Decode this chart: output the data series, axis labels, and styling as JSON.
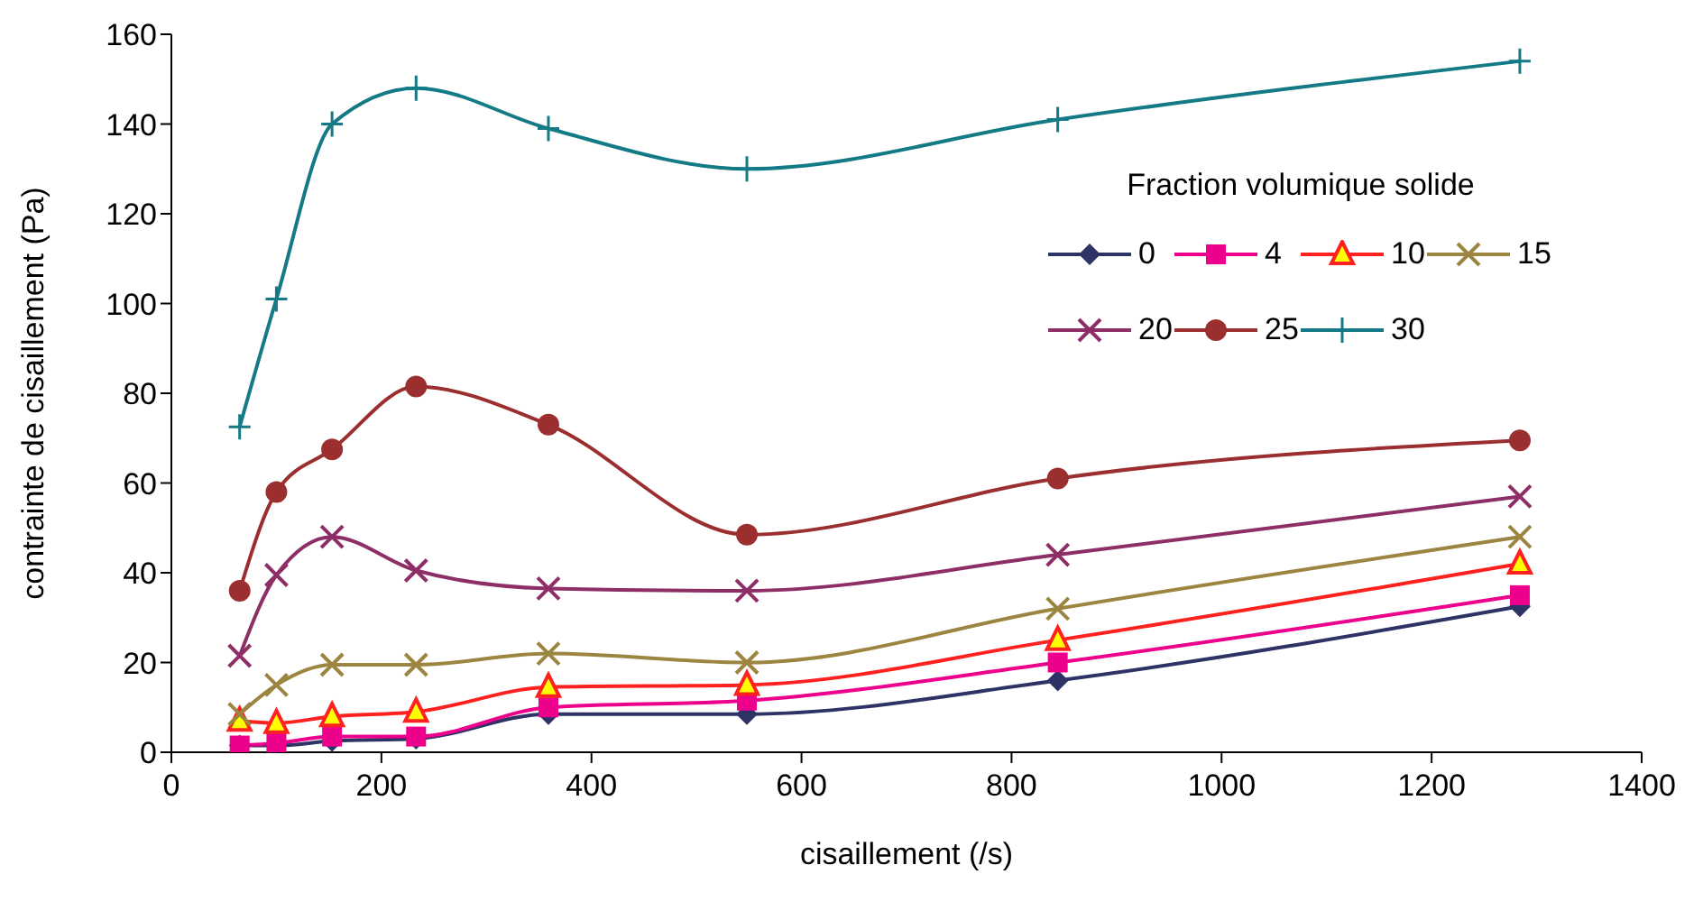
{
  "chart_data": {
    "type": "line",
    "xlabel": "cisaillement (/s)",
    "ylabel": "contrainte de cisaillement (Pa)",
    "legend_title": "Fraction volumique solide",
    "legend": "top right",
    "x": [
      65,
      100,
      153,
      233,
      359,
      548,
      844,
      1284
    ],
    "xlim": [
      0,
      1400
    ],
    "xticks": [
      0,
      200,
      400,
      600,
      800,
      1000,
      1200,
      1400
    ],
    "ylim": [
      0,
      160
    ],
    "yticks": [
      0,
      20,
      40,
      60,
      80,
      100,
      120,
      140,
      160
    ],
    "grid": false,
    "series": [
      {
        "name": "0",
        "color": "#2e3366",
        "marker": "diamond",
        "values": [
          1.5,
          1.5,
          2.5,
          3,
          8.5,
          8.5,
          16,
          32.5
        ]
      },
      {
        "name": "4",
        "color": "#ec008c",
        "marker": "square",
        "values": [
          1.5,
          2,
          3.5,
          3.5,
          10,
          11.5,
          20,
          35
        ]
      },
      {
        "name": "10",
        "color": "#ff2020",
        "marker": "triangle",
        "values": [
          7,
          6.5,
          8,
          9,
          14.5,
          15,
          25,
          42
        ]
      },
      {
        "name": "15",
        "color": "#9c8540",
        "marker": "cross",
        "values": [
          8.5,
          15,
          19.5,
          19.5,
          22,
          20,
          32,
          48
        ]
      },
      {
        "name": "20",
        "color": "#8e2e66",
        "marker": "cross",
        "values": [
          21.5,
          39.5,
          48,
          40.5,
          36.5,
          36,
          44,
          57
        ]
      },
      {
        "name": "25",
        "color": "#9b2f2f",
        "marker": "circle",
        "values": [
          36,
          58,
          67.5,
          81.5,
          73,
          48.5,
          61,
          69.5
        ]
      },
      {
        "name": "30",
        "color": "#137a86",
        "marker": "plus",
        "values": [
          72.5,
          101,
          140,
          148,
          139,
          130,
          141,
          154
        ]
      }
    ]
  }
}
